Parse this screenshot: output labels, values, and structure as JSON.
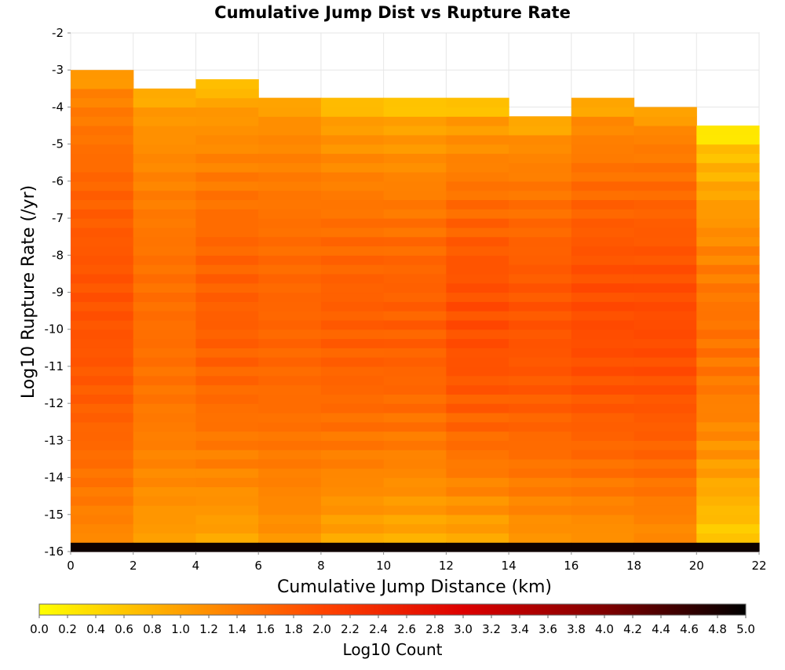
{
  "chart_data": {
    "type": "heatmap",
    "title": "Cumulative Jump Dist vs Rupture Rate",
    "xlabel": "Cumulative Jump Distance (km)",
    "ylabel": "Log10 Rupture Rate (/yr)",
    "xlim": [
      0,
      22
    ],
    "ylim": [
      -16,
      -2
    ],
    "x_ticks": [
      "0",
      "2",
      "4",
      "6",
      "8",
      "10",
      "12",
      "14",
      "16",
      "18",
      "20",
      "22"
    ],
    "y_ticks": [
      "-2",
      "-3",
      "-4",
      "-5",
      "-6",
      "-7",
      "-8",
      "-9",
      "-10",
      "-11",
      "-12",
      "-13",
      "-14",
      "-15",
      "-16"
    ],
    "x_bins": [
      [
        0,
        2
      ],
      [
        2,
        4
      ],
      [
        4,
        6
      ],
      [
        6,
        8
      ],
      [
        8,
        10
      ],
      [
        10,
        12
      ],
      [
        12,
        14
      ],
      [
        14,
        16
      ],
      [
        16,
        18
      ],
      [
        18,
        20
      ],
      [
        20,
        22
      ]
    ],
    "y_bin_width": 0.25,
    "top_log10_rate_by_x_bin": [
      -3.0,
      -3.5,
      -3.25,
      -3.75,
      -3.75,
      -3.75,
      -3.75,
      -4.25,
      -3.75,
      -4.0,
      -4.5
    ],
    "bottom_row_log10_count": 4.9,
    "column_log10_count_ranges": [
      [
        1.0,
        1.9
      ],
      [
        0.8,
        1.6
      ],
      [
        0.6,
        1.8
      ],
      [
        0.9,
        1.7
      ],
      [
        0.6,
        1.8
      ],
      [
        0.5,
        1.8
      ],
      [
        0.5,
        2.0
      ],
      [
        0.8,
        1.9
      ],
      [
        0.8,
        2.0
      ],
      [
        0.9,
        2.0
      ],
      [
        0.1,
        1.6
      ]
    ],
    "colorbar": {
      "label": "Log10 Count",
      "range": [
        0.0,
        5.0
      ],
      "ticks": [
        "0.0",
        "0.2",
        "0.4",
        "0.6",
        "0.8",
        "1.0",
        "1.2",
        "1.4",
        "1.6",
        "1.8",
        "2.0",
        "2.2",
        "2.4",
        "2.6",
        "2.8",
        "3.0",
        "3.2",
        "3.4",
        "3.6",
        "3.8",
        "4.0",
        "4.2",
        "4.4",
        "4.6",
        "4.8",
        "5.0"
      ],
      "colors": [
        "#ffff00",
        "#ffa000",
        "#ff4400",
        "#dd0000",
        "#800000",
        "#000000"
      ]
    },
    "grid": true
  }
}
